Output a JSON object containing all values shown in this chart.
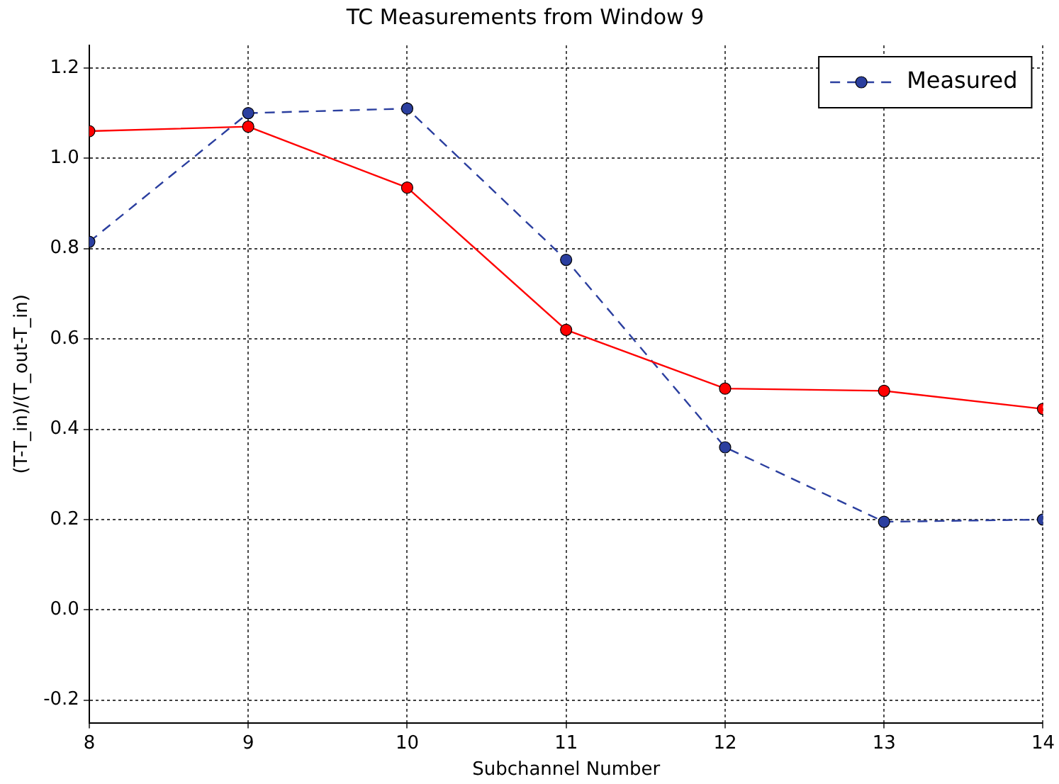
{
  "chart_data": {
    "type": "line",
    "title": "TC Measurements from Window 9",
    "xlabel": "Subchannel Number",
    "ylabel": "(T-T_in)/(T_out-T_in)",
    "x": [
      8,
      9,
      10,
      11,
      12,
      13,
      14
    ],
    "series": [
      {
        "color": "#ff0000",
        "line_style": "solid",
        "values": [
          1.06,
          1.07,
          0.935,
          0.62,
          0.49,
          0.485,
          0.445
        ]
      },
      {
        "name": "Measured",
        "color": "#2b3f9f",
        "line_style": "dashed",
        "values": [
          0.815,
          1.1,
          1.11,
          0.775,
          0.36,
          0.195,
          0.2
        ]
      }
    ],
    "xlim": [
      8,
      14
    ],
    "xticks": [
      8,
      9,
      10,
      11,
      12,
      13,
      14
    ],
    "ylim": [
      -0.25,
      1.25
    ],
    "yticks": [
      -0.2,
      {
        "value": 0,
        "label": "0.0"
      },
      0.2,
      0.4,
      0.6,
      0.8,
      {
        "value": 1,
        "label": "1.0"
      },
      1.2
    ],
    "grid": true,
    "legend": "top right",
    "marker": "circle"
  }
}
